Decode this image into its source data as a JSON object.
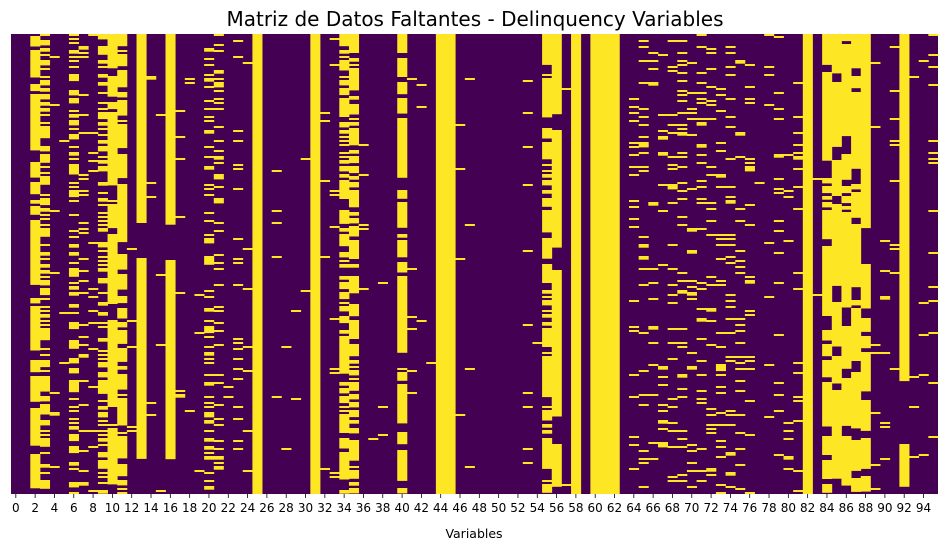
{
  "chart_data": {
    "type": "heatmap",
    "title": "Matriz de Datos Faltantes - Delinquency Variables",
    "xlabel": "Variables",
    "ylabel": "",
    "n_columns": 96,
    "x_tick_labels": [
      "0",
      "2",
      "4",
      "6",
      "8",
      "10",
      "12",
      "14",
      "16",
      "18",
      "20",
      "22",
      "24",
      "26",
      "28",
      "30",
      "32",
      "34",
      "36",
      "38",
      "40",
      "42",
      "44",
      "46",
      "48",
      "50",
      "52",
      "54",
      "56",
      "58",
      "60",
      "62",
      "64",
      "66",
      "68",
      "70",
      "72",
      "74",
      "76",
      "78",
      "80",
      "82",
      "84",
      "86",
      "88",
      "90",
      "92",
      "94"
    ],
    "value_meaning": {
      "0": "present",
      "1": "missing"
    },
    "colors": {
      "missing": "#fde725",
      "present": "#440154"
    },
    "missing_fraction_by_column": [
      0,
      0,
      0.92,
      0.55,
      0.06,
      0.02,
      0.45,
      0.12,
      0.05,
      0.5,
      0.97,
      0.9,
      0.02,
      0.99,
      0.03,
      0.01,
      0.99,
      0.03,
      0.01,
      0.02,
      0.3,
      0.25,
      0.01,
      0.05,
      0.02,
      1,
      0.01,
      0.01,
      0.01,
      0.01,
      0.01,
      1,
      0.01,
      0.01,
      0.75,
      0.82,
      0.03,
      0.01,
      0.01,
      0.01,
      0.93,
      0.01,
      0.01,
      0.01,
      1,
      1,
      0.01,
      0.01,
      0,
      0,
      0,
      0,
      0,
      0.03,
      0.01,
      0.82,
      0.99,
      0.01,
      1,
      0.01,
      1,
      1,
      1,
      0.01,
      0.12,
      0.12,
      0.12,
      0.12,
      0.12,
      0.12,
      0.12,
      0.12,
      0.12,
      0.12,
      0.12,
      0.12,
      0.12,
      0.01,
      0.05,
      0.05,
      0.05,
      0.05,
      1,
      0.01,
      0.96,
      0.96,
      0.96,
      0.96,
      0.96,
      0.02,
      0.03,
      0.03,
      0.98,
      0.01,
      0.03,
      0.03
    ]
  }
}
